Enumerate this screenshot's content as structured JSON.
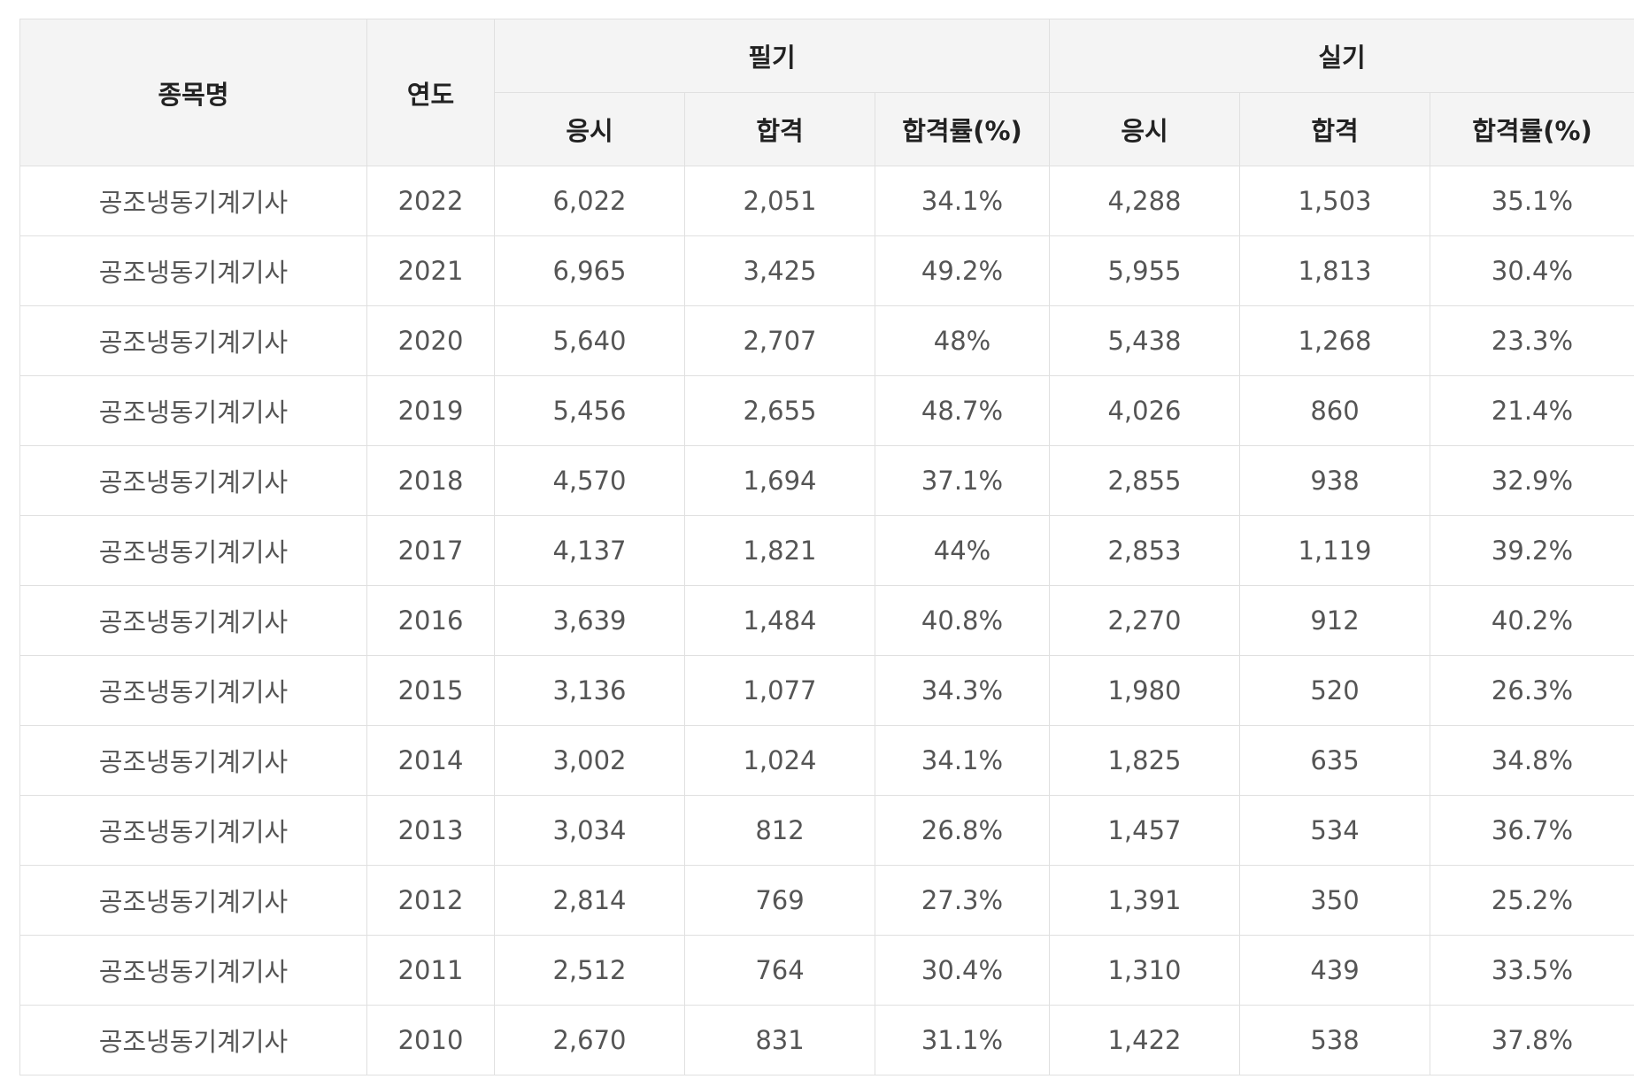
{
  "table": {
    "headers": {
      "item_name": "종목명",
      "year": "연도",
      "written": "필기",
      "practical": "실기",
      "written_sub": [
        "응시",
        "합격",
        "합격률(%)"
      ],
      "practical_sub": [
        "응시",
        "합격",
        "합격률(%)"
      ]
    },
    "rows": [
      [
        "공조냉동기계기사",
        "2022",
        "6,022",
        "2,051",
        "34.1%",
        "4,288",
        "1,503",
        "35.1%"
      ],
      [
        "공조냉동기계기사",
        "2021",
        "6,965",
        "3,425",
        "49.2%",
        "5,955",
        "1,813",
        "30.4%"
      ],
      [
        "공조냉동기계기사",
        "2020",
        "5,640",
        "2,707",
        "48%",
        "5,438",
        "1,268",
        "23.3%"
      ],
      [
        "공조냉동기계기사",
        "2019",
        "5,456",
        "2,655",
        "48.7%",
        "4,026",
        "860",
        "21.4%"
      ],
      [
        "공조냉동기계기사",
        "2018",
        "4,570",
        "1,694",
        "37.1%",
        "2,855",
        "938",
        "32.9%"
      ],
      [
        "공조냉동기계기사",
        "2017",
        "4,137",
        "1,821",
        "44%",
        "2,853",
        "1,119",
        "39.2%"
      ],
      [
        "공조냉동기계기사",
        "2016",
        "3,639",
        "1,484",
        "40.8%",
        "2,270",
        "912",
        "40.2%"
      ],
      [
        "공조냉동기계기사",
        "2015",
        "3,136",
        "1,077",
        "34.3%",
        "1,980",
        "520",
        "26.3%"
      ],
      [
        "공조냉동기계기사",
        "2014",
        "3,002",
        "1,024",
        "34.1%",
        "1,825",
        "635",
        "34.8%"
      ],
      [
        "공조냉동기계기사",
        "2013",
        "3,034",
        "812",
        "26.8%",
        "1,457",
        "534",
        "36.7%"
      ],
      [
        "공조냉동기계기사",
        "2012",
        "2,814",
        "769",
        "27.3%",
        "1,391",
        "350",
        "25.2%"
      ],
      [
        "공조냉동기계기사",
        "2011",
        "2,512",
        "764",
        "30.4%",
        "1,310",
        "439",
        "33.5%"
      ],
      [
        "공조냉동기계기사",
        "2010",
        "2,670",
        "831",
        "31.1%",
        "1,422",
        "538",
        "37.8%"
      ]
    ]
  }
}
